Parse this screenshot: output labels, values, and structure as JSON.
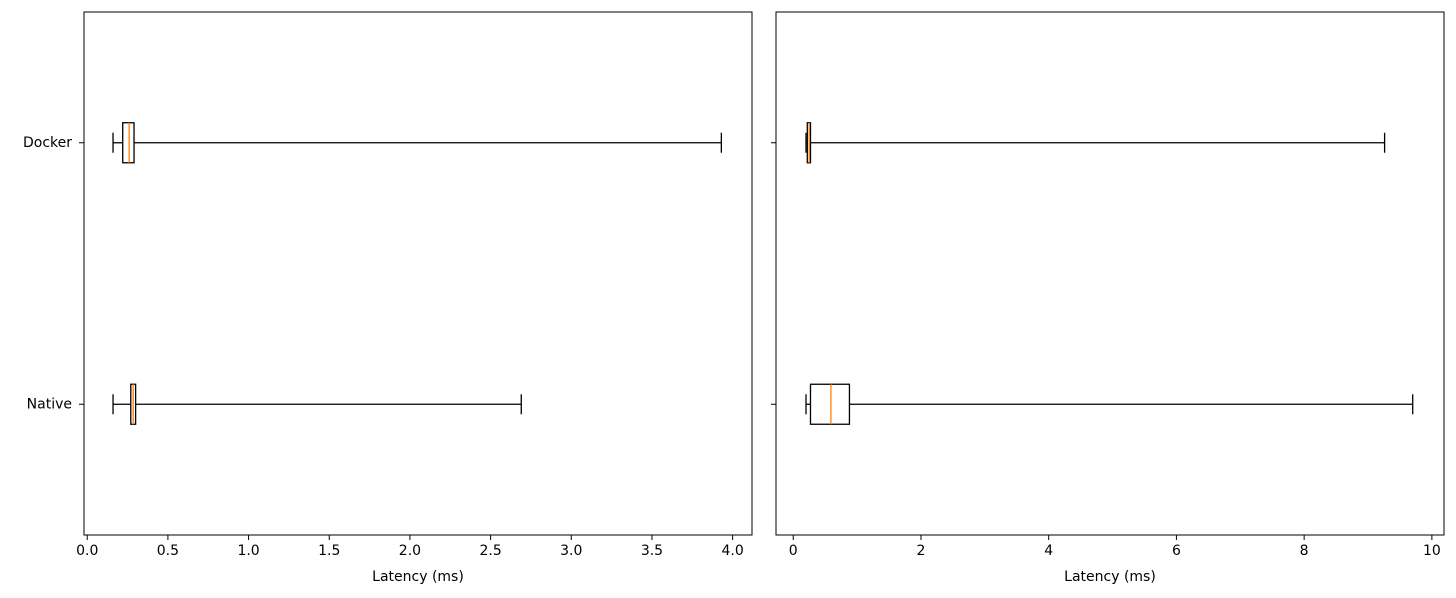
{
  "chart_data": [
    {
      "type": "box",
      "xlabel": "Latency (ms)",
      "categories": [
        "Native",
        "Docker"
      ],
      "boxes": [
        {
          "whislo": 0.16,
          "q1": 0.27,
          "med": 0.285,
          "q3": 0.3,
          "whishi": 2.69
        },
        {
          "whislo": 0.16,
          "q1": 0.22,
          "med": 0.26,
          "q3": 0.29,
          "whishi": 3.93
        }
      ],
      "box_color": "#000000",
      "median_color": "#ff7f0e",
      "xlim": [
        -0.02,
        4.12
      ],
      "xticks": [
        {
          "value": 0,
          "label": "0.0"
        },
        0.5,
        {
          "value": 1,
          "label": "1.0"
        },
        1.5,
        {
          "value": 2,
          "label": "2.0"
        },
        2.5,
        {
          "value": 3,
          "label": "3.0"
        },
        3.5,
        {
          "value": 4,
          "label": "4.0"
        }
      ]
    },
    {
      "type": "box",
      "xlabel": "Latency (ms)",
      "categories": [
        null,
        null
      ],
      "boxes": [
        {
          "whislo": 0.2,
          "q1": 0.27,
          "med": 0.59,
          "q3": 0.88,
          "whishi": 9.7
        },
        {
          "whislo": 0.2,
          "q1": 0.22,
          "med": 0.25,
          "q3": 0.27,
          "whishi": 9.26
        }
      ],
      "box_color": "#000000",
      "median_color": "#ff7f0e",
      "xlim": [
        -0.27,
        10.19
      ],
      "xticks": [
        0,
        2,
        4,
        6,
        8,
        10
      ]
    }
  ]
}
